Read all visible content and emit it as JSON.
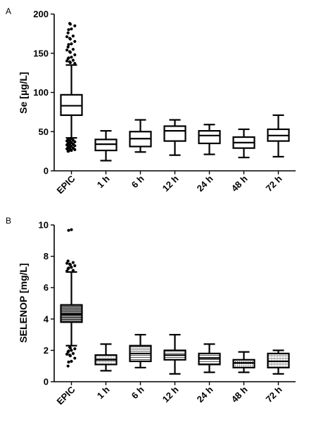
{
  "chart_data": [
    {
      "panel": "A",
      "type": "box",
      "ylabel": "Se [µg/L]",
      "ylim": [
        0,
        200
      ],
      "yticks": [
        0,
        50,
        100,
        150,
        200
      ],
      "categories": [
        "EPIC",
        "1 h",
        "6 h",
        "12 h",
        "24 h",
        "48 h",
        "72 h"
      ],
      "boxes": [
        {
          "category": "EPIC",
          "whisker_low": 42,
          "q1": 71,
          "median": 83,
          "q3": 97,
          "whisker_high": 135,
          "outliers": [
            25,
            26,
            27,
            28,
            29,
            30,
            31,
            32,
            33,
            34,
            35,
            36,
            37,
            38,
            39,
            40,
            41,
            137,
            139,
            141,
            143,
            145,
            148,
            152,
            155,
            158,
            162,
            165,
            169,
            172,
            176,
            181,
            185,
            188
          ]
        },
        {
          "category": "1 h",
          "whisker_low": 13,
          "q1": 26,
          "median": 34,
          "q3": 40,
          "whisker_high": 51,
          "outliers": []
        },
        {
          "category": "6 h",
          "whisker_low": 24,
          "q1": 31,
          "median": 41,
          "q3": 50,
          "whisker_high": 65,
          "outliers": []
        },
        {
          "category": "12 h",
          "whisker_low": 20,
          "q1": 38,
          "median": 51,
          "q3": 57,
          "whisker_high": 65,
          "outliers": []
        },
        {
          "category": "24 h",
          "whisker_low": 21,
          "q1": 35,
          "median": 45,
          "q3": 51,
          "whisker_high": 59,
          "outliers": []
        },
        {
          "category": "48 h",
          "whisker_low": 17,
          "q1": 29,
          "median": 36,
          "q3": 43,
          "whisker_high": 53,
          "outliers": []
        },
        {
          "category": "72 h",
          "whisker_low": 18,
          "q1": 38,
          "median": 45,
          "q3": 53,
          "whisker_high": 71,
          "outliers": []
        }
      ],
      "fill": "white"
    },
    {
      "panel": "B",
      "type": "box",
      "ylabel": "SELENOP [mg/L]",
      "ylim": [
        0,
        10
      ],
      "yticks": [
        0,
        2,
        4,
        6,
        8,
        10
      ],
      "categories": [
        "EPIC",
        "1 h",
        "6 h",
        "12 h",
        "24 h",
        "48 h",
        "72 h"
      ],
      "boxes": [
        {
          "category": "EPIC",
          "whisker_low": 2.3,
          "q1": 3.8,
          "median": 4.3,
          "q3": 4.9,
          "whisker_high": 7.0,
          "outliers": [
            1.0,
            1.3,
            1.5,
            1.7,
            1.8,
            1.9,
            2.0,
            2.1,
            2.2,
            7.1,
            7.2,
            7.3,
            7.4,
            7.5,
            7.6,
            7.7,
            9.7
          ]
        },
        {
          "category": "1 h",
          "whisker_low": 0.7,
          "q1": 1.1,
          "median": 1.4,
          "q3": 1.7,
          "whisker_high": 2.4,
          "outliers": []
        },
        {
          "category": "6 h",
          "whisker_low": 0.9,
          "q1": 1.3,
          "median": 1.8,
          "q3": 2.3,
          "whisker_high": 3.0,
          "outliers": []
        },
        {
          "category": "12 h",
          "whisker_low": 0.5,
          "q1": 1.4,
          "median": 1.7,
          "q3": 2.0,
          "whisker_high": 3.0,
          "outliers": []
        },
        {
          "category": "24 h",
          "whisker_low": 0.6,
          "q1": 1.1,
          "median": 1.5,
          "q3": 1.8,
          "whisker_high": 2.4,
          "outliers": []
        },
        {
          "category": "48 h",
          "whisker_low": 0.6,
          "q1": 0.9,
          "median": 1.2,
          "q3": 1.4,
          "whisker_high": 1.9,
          "outliers": []
        },
        {
          "category": "72 h",
          "whisker_low": 0.5,
          "q1": 0.9,
          "median": 1.3,
          "q3": 1.8,
          "whisker_high": 2.0,
          "outliers": []
        }
      ],
      "fill": "hatched"
    }
  ]
}
